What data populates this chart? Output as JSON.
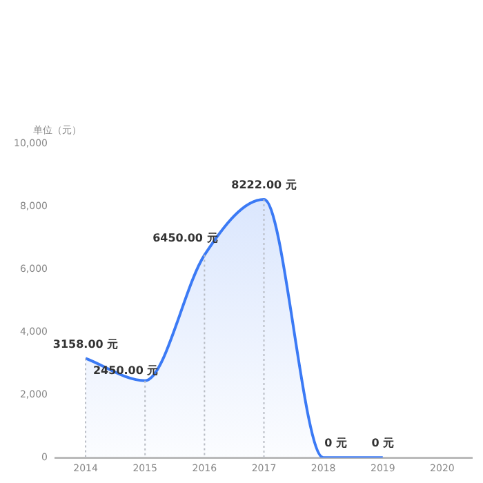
{
  "chart_data": {
    "type": "area",
    "ylabel": "单位（元）",
    "categories": [
      "2014",
      "2015",
      "2016",
      "2017",
      "2018",
      "2019",
      "2020"
    ],
    "series": [
      {
        "color": "#3b7af5",
        "values": [
          3158,
          2450,
          6450,
          8222,
          0,
          0,
          null
        ],
        "value_labels": [
          "3158.00 元",
          "2450.00 元",
          "6450.00 元",
          "8222.00 元",
          "0 元",
          "0 元",
          null
        ]
      }
    ],
    "ylim": [
      0,
      10000
    ],
    "yticks": [
      {
        "value": 0,
        "label": "0"
      },
      {
        "value": 2000,
        "label": "2,000"
      },
      {
        "value": 4000,
        "label": "4,000"
      },
      {
        "value": 6000,
        "label": "6,000"
      },
      {
        "value": 8000,
        "label": "8,000"
      },
      {
        "value": 10000,
        "label": "10,000"
      }
    ],
    "grid": "x",
    "legend": false,
    "marker": "none",
    "line_style": "solid"
  }
}
